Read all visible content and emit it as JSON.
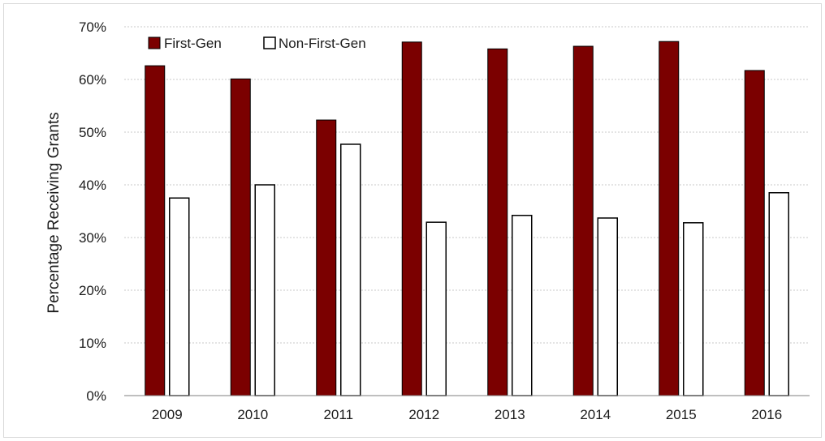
{
  "chart_data": {
    "type": "bar",
    "title": "",
    "xlabel": "",
    "ylabel": "Percentage Receiving Grants",
    "categories": [
      "2009",
      "2010",
      "2011",
      "2012",
      "2013",
      "2014",
      "2015",
      "2016"
    ],
    "series": [
      {
        "name": "First-Gen",
        "values": [
          62.6,
          60.1,
          52.3,
          67.1,
          65.8,
          66.3,
          67.2,
          61.7
        ]
      },
      {
        "name": "Non-First-Gen",
        "values": [
          37.5,
          40.0,
          47.7,
          32.9,
          34.2,
          33.7,
          32.8,
          38.5
        ]
      }
    ],
    "ylim": [
      0,
      70
    ],
    "yticks": [
      "0%",
      "10%",
      "20%",
      "30%",
      "40%",
      "50%",
      "60%",
      "70%"
    ],
    "grid": true,
    "legend_position": "top-left",
    "colors": {
      "First-Gen": "#7b0000",
      "Non-First-Gen": "#ffffff",
      "edge": "#000000",
      "grid": "#c8c8c8"
    }
  }
}
